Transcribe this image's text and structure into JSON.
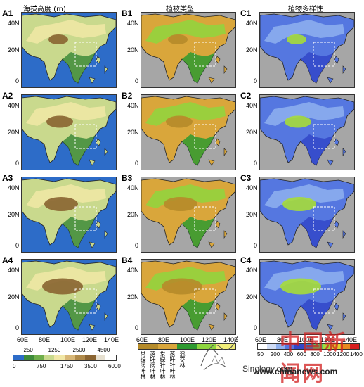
{
  "columns": [
    {
      "title": "海拔高度 (m)",
      "labels": [
        "A1",
        "A2",
        "A3",
        "A4"
      ]
    },
    {
      "title": "植被类型",
      "labels": [
        "B1",
        "B2",
        "B3",
        "B4"
      ]
    },
    {
      "title": "植物多样性",
      "labels": [
        "C1",
        "C2",
        "C3",
        "C4"
      ]
    }
  ],
  "axes": {
    "lat_ticks": [
      "40N",
      "20N",
      "0"
    ],
    "lon_ticks": [
      "60E",
      "80E",
      "100E",
      "120E",
      "140E"
    ]
  },
  "elevation_colorbar": {
    "upper_labels": [
      "250",
      "1250",
      "2500",
      "4500"
    ],
    "lower_labels": [
      "0",
      "750",
      "1750",
      "3500",
      "6000"
    ],
    "colors": [
      "#2d6cc8",
      "#3e8b3a",
      "#6fae4b",
      "#c9d98d",
      "#f1e7a6",
      "#d8b777",
      "#b08a4a",
      "#8a6431",
      "#e6e0d0",
      "#ffffff"
    ]
  },
  "vegetation_legend": {
    "labels": [
      "常绿阔叶林",
      "落叶阔叶林",
      "常绿针叶林",
      "落叶针叶林",
      "混交林"
    ],
    "colors": [
      "#b58b2a",
      "#d9a63b",
      "#2e9a30",
      "#8ed63e",
      "#f1ee78"
    ]
  },
  "diversity_colorbar": {
    "labels": [
      "50",
      "200",
      "400",
      "600",
      "800",
      "1000",
      "1200",
      "1400"
    ],
    "colors": [
      "#ffffff",
      "#cfdcf5",
      "#8fb0ee",
      "#5577e0",
      "#3347c8",
      "#2c7fd0",
      "#5cc16a",
      "#a6dc3a",
      "#e0d02c",
      "#e8891f",
      "#d81e1e"
    ]
  },
  "watermark": {
    "site": "Sinology.com",
    "domain": "www.chinanews.com",
    "brand": "中国新闻网"
  }
}
